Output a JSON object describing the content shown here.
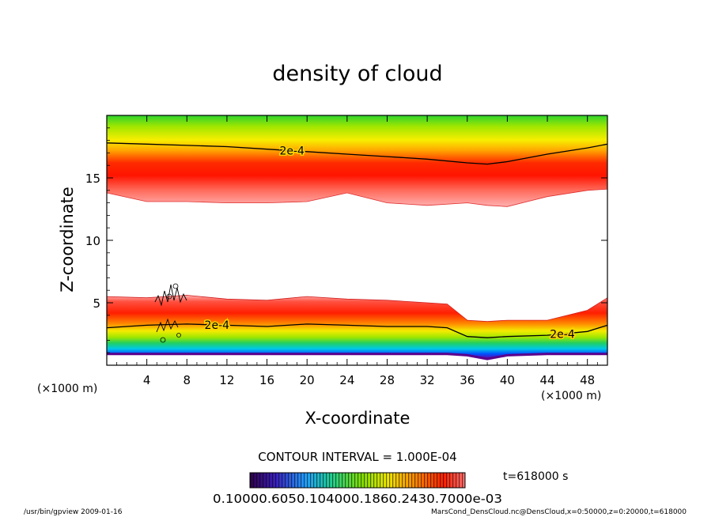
{
  "chart_data": {
    "type": "heatmap",
    "title": "density of cloud",
    "xlabel": "X-coordinate",
    "ylabel": "Z-coordinate",
    "x_unit": "(×1000 m)",
    "z_unit": "(×1000 m)",
    "xlim": [
      0,
      50
    ],
    "ylim": [
      0,
      20
    ],
    "x_ticks": [
      4,
      8,
      12,
      16,
      20,
      24,
      28,
      32,
      36,
      40,
      44,
      48
    ],
    "y_ticks": [
      5,
      10,
      15
    ],
    "contour_level_label": "2e-4",
    "contour_interval_text": "CONTOUR INTERVAL = 1.000E-04",
    "time_text": "t=618000 s",
    "colorbar_text": "0.10000.6050.104000.1860.2430.7000e-03",
    "colorbar_range": [
      0.0001,
      0.0007
    ],
    "upper_layer": {
      "x": [
        0,
        4,
        8,
        12,
        16,
        20,
        24,
        28,
        32,
        36,
        38,
        40,
        44,
        48,
        50
      ],
      "top_z": [
        20,
        20,
        20,
        20,
        20,
        20,
        20,
        20,
        20,
        20,
        20,
        20,
        20,
        20,
        20
      ],
      "bottom_z": [
        13.8,
        13.1,
        13.1,
        13.0,
        13.0,
        13.1,
        13.8,
        13.0,
        12.8,
        13.0,
        12.8,
        12.7,
        13.5,
        14.0,
        14.1
      ],
      "peak_z": [
        15.4,
        15.6,
        15.6,
        15.5,
        15.3,
        15.0,
        14.8,
        14.5,
        14.2,
        14.0,
        13.9,
        14.0,
        14.6,
        15.2,
        15.4
      ],
      "contour_2e4_z": [
        17.8,
        17.7,
        17.6,
        17.5,
        17.3,
        17.1,
        16.9,
        16.7,
        16.5,
        16.2,
        16.1,
        16.3,
        16.9,
        17.4,
        17.7
      ]
    },
    "lower_layer": {
      "x": [
        0,
        4,
        8,
        12,
        16,
        20,
        24,
        28,
        32,
        34,
        36,
        38,
        40,
        44,
        48,
        50
      ],
      "top_z": [
        5.5,
        5.4,
        5.6,
        5.3,
        5.2,
        5.5,
        5.3,
        5.2,
        5.0,
        4.9,
        3.6,
        3.5,
        3.6,
        3.6,
        4.4,
        5.4
      ],
      "peak_z": [
        4.4,
        4.5,
        4.6,
        4.4,
        4.2,
        4.4,
        4.2,
        4.1,
        4.0,
        3.8,
        3.1,
        2.9,
        3.0,
        3.0,
        3.6,
        4.4
      ],
      "bottom_z": [
        0.9,
        0.9,
        0.9,
        0.9,
        0.9,
        0.9,
        0.9,
        0.9,
        0.9,
        0.9,
        0.8,
        0.5,
        0.8,
        0.9,
        0.9,
        0.9
      ],
      "contour_2e4_z": [
        3.0,
        3.2,
        3.3,
        3.2,
        3.1,
        3.3,
        3.2,
        3.1,
        3.1,
        3.0,
        2.3,
        2.2,
        2.3,
        2.4,
        2.7,
        3.2
      ]
    }
  },
  "footer": {
    "left": "/usr/bin/gpview   2009-01-16",
    "right": "MarsCond_DensCloud.nc@DensCloud,x=0:50000,z=0:20000,t=618000"
  }
}
